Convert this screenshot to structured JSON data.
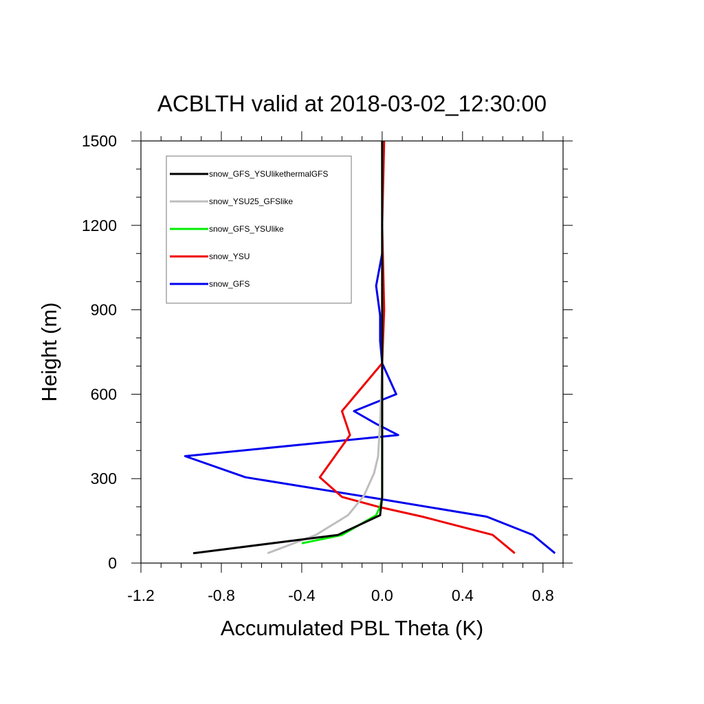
{
  "chart_data": {
    "type": "line",
    "title": "ACBLTH valid at 2018-03-02_12:30:00",
    "xlabel": "Accumulated PBL Theta (K)",
    "ylabel": "Height (m)",
    "xlim": [
      -1.2,
      0.9
    ],
    "ylim": [
      0,
      1500
    ],
    "x_ticks": [
      -1.2,
      -0.8,
      -0.4,
      0.0,
      0.4,
      0.8
    ],
    "x_tick_labels": [
      "-1.2",
      "-0.8",
      "-0.4",
      "0.0",
      "0.4",
      "0.8"
    ],
    "y_ticks": [
      0,
      300,
      600,
      900,
      1200,
      1500
    ],
    "y_tick_labels": [
      "0",
      "300",
      "600",
      "900",
      "1200",
      "1500"
    ],
    "grid": false,
    "legend_position": "top-left",
    "series": [
      {
        "name": "snow_GFS",
        "color": "#0000ee",
        "points": [
          [
            0.86,
            35
          ],
          [
            0.75,
            100
          ],
          [
            0.52,
            165
          ],
          [
            -0.03,
            230
          ],
          [
            -0.68,
            305
          ],
          [
            -0.98,
            380
          ],
          [
            0.08,
            455
          ],
          [
            -0.03,
            495
          ],
          [
            -0.14,
            540
          ],
          [
            0.07,
            600
          ],
          [
            0.0,
            710
          ],
          [
            -0.01,
            790
          ],
          [
            -0.01,
            880
          ],
          [
            -0.03,
            985
          ],
          [
            0.0,
            1100
          ],
          [
            0.0,
            1250
          ],
          [
            0.0,
            1400
          ],
          [
            0.0,
            1500
          ]
        ]
      },
      {
        "name": "snow_YSU",
        "color": "#ee0000",
        "points": [
          [
            0.66,
            35
          ],
          [
            0.55,
            100
          ],
          [
            0.2,
            165
          ],
          [
            -0.02,
            200
          ],
          [
            -0.2,
            235
          ],
          [
            -0.31,
            305
          ],
          [
            -0.16,
            455
          ],
          [
            -0.2,
            540
          ],
          [
            0.0,
            710
          ],
          [
            0.01,
            900
          ],
          [
            0.0,
            1200
          ],
          [
            0.01,
            1500
          ]
        ]
      },
      {
        "name": "snow_GFS_YSUlike",
        "color": "#00ee00",
        "points": [
          [
            -0.4,
            70
          ],
          [
            -0.2,
            100
          ],
          [
            -0.03,
            170
          ],
          [
            -0.01,
            200
          ],
          [
            0.0,
            235
          ],
          [
            0.0,
            500
          ],
          [
            0.0,
            1500
          ]
        ]
      },
      {
        "name": "snow_YSU25_GFSlike",
        "color": "#bebebe",
        "points": [
          [
            -0.57,
            35
          ],
          [
            -0.33,
            100
          ],
          [
            -0.17,
            170
          ],
          [
            -0.09,
            240
          ],
          [
            -0.04,
            320
          ],
          [
            -0.02,
            380
          ],
          [
            -0.01,
            500
          ],
          [
            0.0,
            700
          ],
          [
            0.0,
            1500
          ]
        ]
      },
      {
        "name": "snow_GFS_YSUlikethermalGFS",
        "color": "#000000",
        "points": [
          [
            -0.94,
            35
          ],
          [
            -0.22,
            100
          ],
          [
            -0.01,
            170
          ],
          [
            0.0,
            235
          ],
          [
            0.0,
            700
          ],
          [
            0.0,
            1100
          ],
          [
            0.0,
            1500
          ]
        ]
      }
    ],
    "legend_order": [
      "snow_GFS_YSUlikethermalGFS",
      "snow_YSU25_GFSlike",
      "snow_GFS_YSUlike",
      "snow_YSU",
      "snow_GFS"
    ]
  }
}
